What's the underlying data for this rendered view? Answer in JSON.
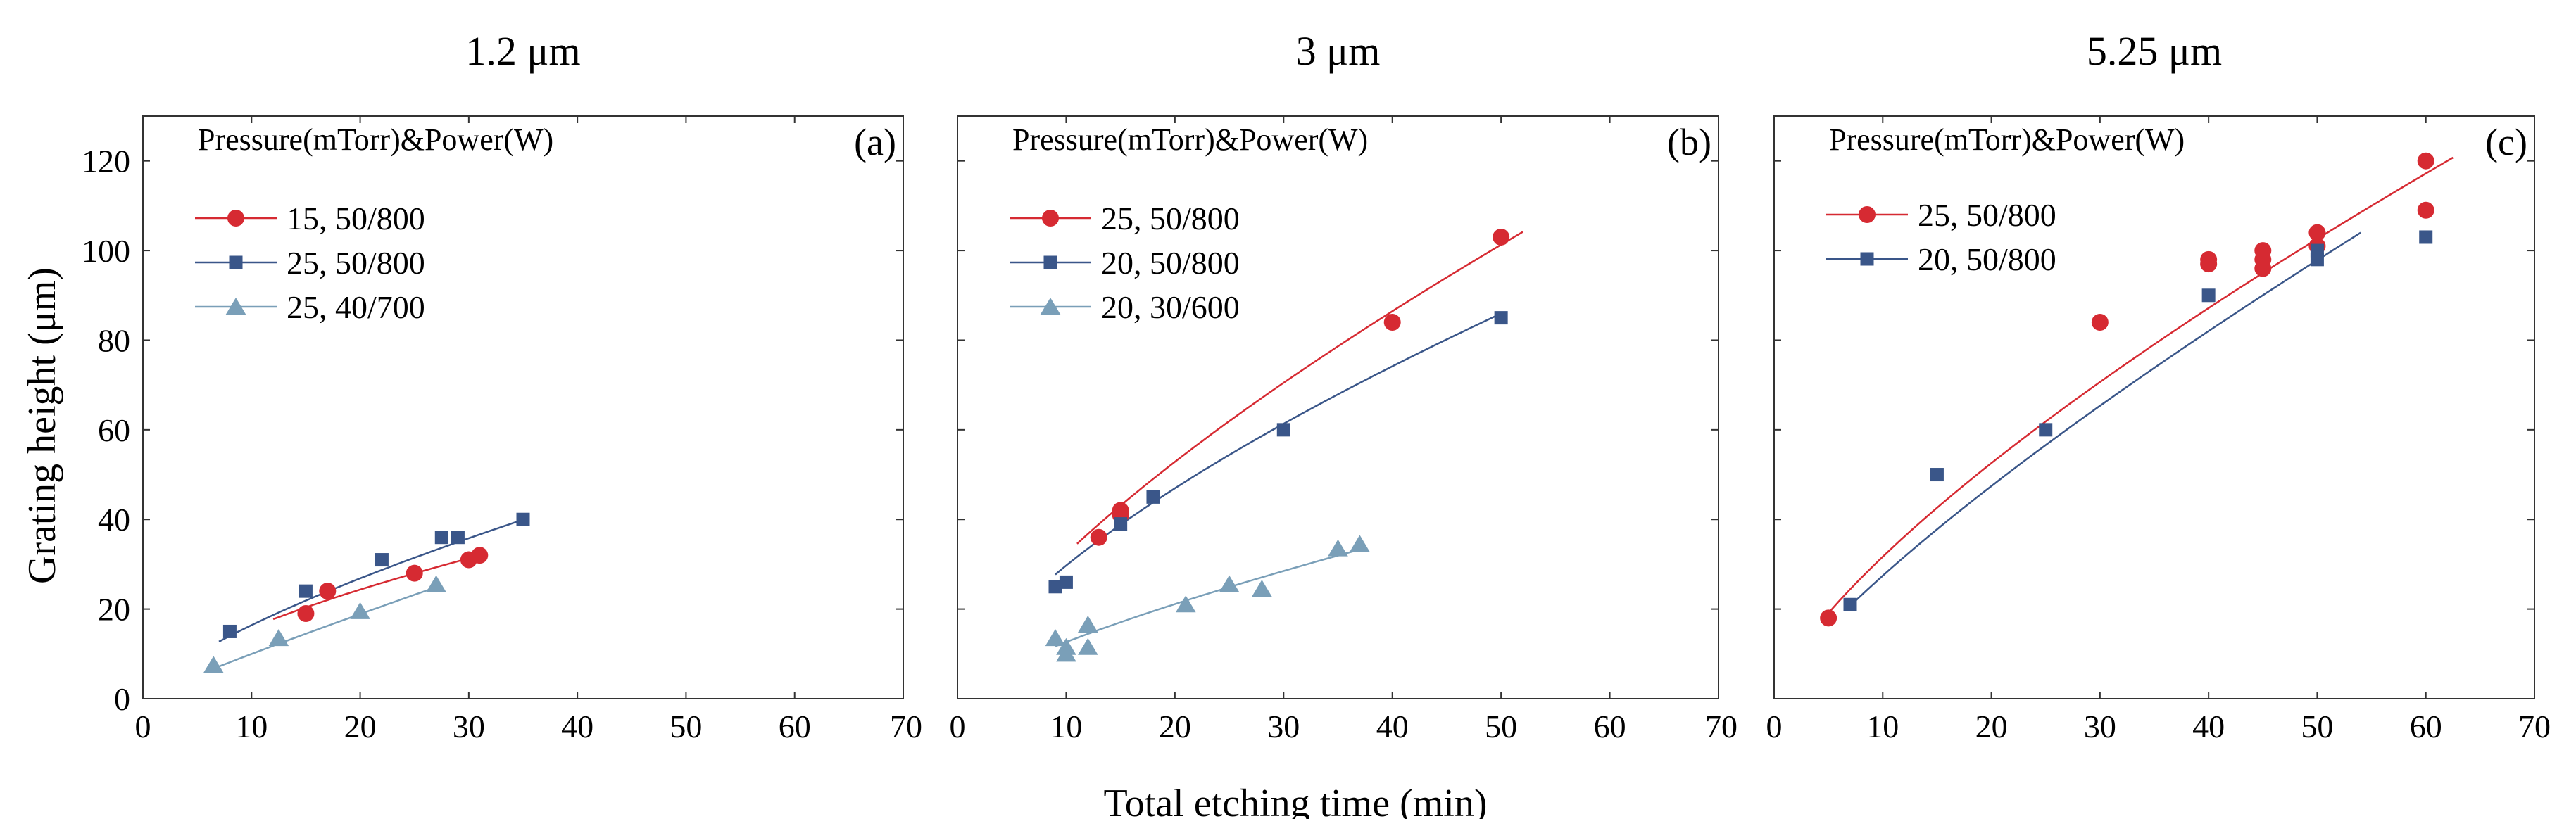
{
  "figure": {
    "xlabel": "Total etching time (min)",
    "ylabel": "Grating height (μm)"
  },
  "colors": {
    "red": "#d62a32",
    "blue": "#3a5689",
    "lightblue": "#7a9fb8",
    "axis": "#333333"
  },
  "chart_data": [
    {
      "type": "scatter",
      "title": "1.2 μm",
      "panel_label": "(a)",
      "legend_title": "Pressure(mTorr)&Power(W)",
      "xlim": [
        0,
        70
      ],
      "ylim": [
        0,
        130
      ],
      "xticks": [
        0,
        10,
        20,
        30,
        40,
        50,
        60,
        70
      ],
      "yticks": [
        0,
        20,
        40,
        60,
        80,
        100,
        120
      ],
      "series": [
        {
          "name": "15, 50/800",
          "marker": "circle",
          "color": "#d62a32",
          "x": [
            15,
            17,
            25,
            30,
            31
          ],
          "y": [
            19,
            24,
            28,
            31,
            32
          ],
          "fit": {
            "a": 3.8,
            "b": 0.62,
            "xmin": 12,
            "xmax": 31
          }
        },
        {
          "name": "25, 50/800",
          "marker": "square",
          "color": "#3a5689",
          "x": [
            8,
            15,
            22,
            27.5,
            29,
            35
          ],
          "y": [
            15,
            24,
            31,
            36,
            36,
            40
          ],
          "fit": {
            "a": 3.2,
            "b": 0.71,
            "xmin": 7,
            "xmax": 35
          }
        },
        {
          "name": "25, 40/700",
          "marker": "triangle",
          "color": "#7a9fb8",
          "x": [
            6.5,
            12.5,
            20,
            27
          ],
          "y": [
            7.5,
            13.5,
            19.5,
            25.5
          ],
          "fit": {
            "a": 1.2,
            "b": 0.92,
            "xmin": 6.5,
            "xmax": 27
          }
        }
      ]
    },
    {
      "type": "scatter",
      "title": "3 μm",
      "panel_label": "(b)",
      "legend_title": "Pressure(mTorr)&Power(W)",
      "xlim": [
        0,
        70
      ],
      "ylim": [
        0,
        130
      ],
      "xticks": [
        0,
        10,
        20,
        30,
        40,
        50,
        60,
        70
      ],
      "yticks": [
        0,
        20,
        40,
        60,
        80,
        100,
        120
      ],
      "series": [
        {
          "name": "25, 50/800",
          "marker": "circle",
          "color": "#d62a32",
          "x": [
            13,
            15,
            15,
            40,
            50
          ],
          "y": [
            36,
            41,
            42,
            84,
            103
          ],
          "fit": {
            "a": 6.3,
            "b": 0.71,
            "xmin": 11,
            "xmax": 52
          }
        },
        {
          "name": "20, 50/800",
          "marker": "square",
          "color": "#3a5689",
          "x": [
            9,
            10,
            15,
            18,
            30,
            50
          ],
          "y": [
            25,
            26,
            39,
            45,
            60,
            85
          ],
          "fit": {
            "a": 6.5,
            "b": 0.66,
            "xmin": 9,
            "xmax": 50
          }
        },
        {
          "name": "20, 30/600",
          "marker": "triangle",
          "color": "#7a9fb8",
          "x": [
            9,
            10,
            10,
            12,
            12,
            21,
            25,
            28,
            35,
            37
          ],
          "y": [
            13.5,
            11.5,
            10,
            16.5,
            11.5,
            21,
            25.5,
            24.5,
            33.5,
            34.5
          ],
          "fit": {
            "a": 2.3,
            "b": 0.74,
            "xmin": 9,
            "xmax": 37
          }
        }
      ]
    },
    {
      "type": "scatter",
      "title": "5.25 μm",
      "panel_label": "(c)",
      "legend_title": "Pressure(mTorr)&Power(W)",
      "xlim": [
        0,
        70
      ],
      "ylim": [
        0,
        130
      ],
      "xticks": [
        0,
        10,
        20,
        30,
        40,
        50,
        60,
        70
      ],
      "yticks": [
        0,
        20,
        40,
        60,
        80,
        100,
        120
      ],
      "series": [
        {
          "name": "25, 50/800",
          "marker": "circle",
          "color": "#d62a32",
          "x": [
            5,
            30,
            40,
            40,
            45,
            45,
            45,
            50,
            50,
            60,
            60
          ],
          "y": [
            18,
            84,
            97,
            98,
            96,
            98,
            100,
            101,
            104,
            109,
            120
          ],
          "fit": {
            "a": 5.9,
            "b": 0.73,
            "xmin": 5,
            "xmax": 62.5
          }
        },
        {
          "name": "20, 50/800",
          "marker": "square",
          "color": "#3a5689",
          "x": [
            7,
            15,
            25,
            40,
            50,
            50,
            60
          ],
          "y": [
            21,
            50,
            60,
            90,
            98,
            100,
            103
          ],
          "fit": {
            "a": 4.45,
            "b": 0.79,
            "xmin": 7,
            "xmax": 54
          }
        }
      ]
    }
  ]
}
